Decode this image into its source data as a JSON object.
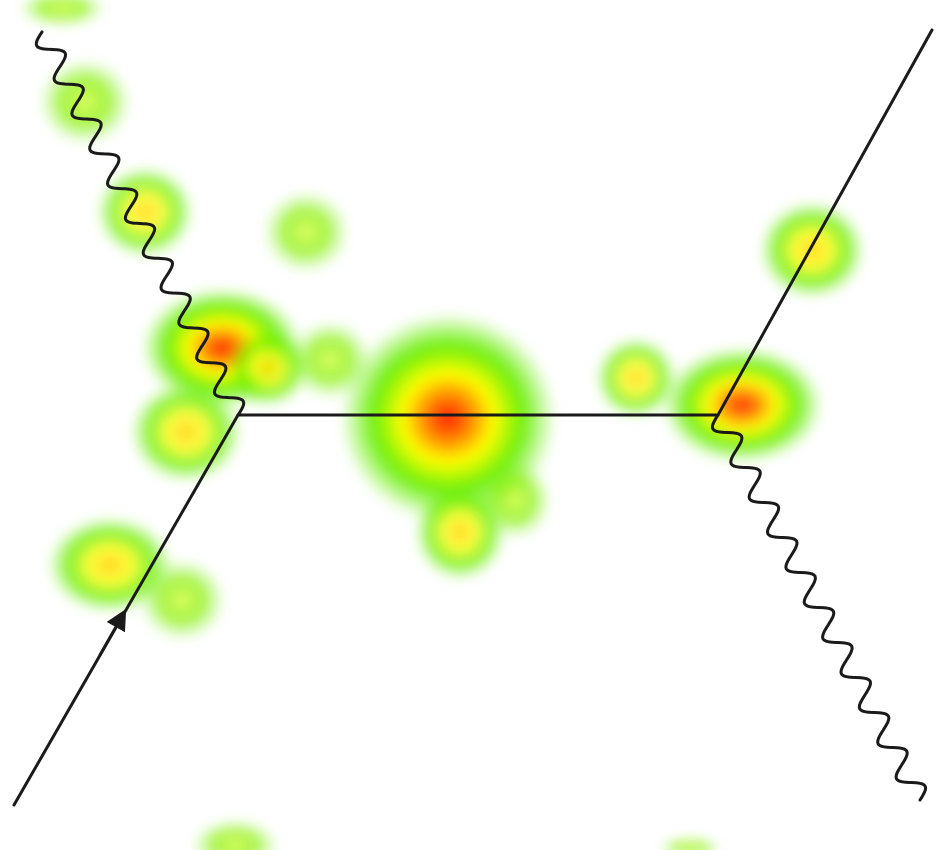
{
  "figure": {
    "kind": "feynman-diagram-with-attention-heatmap",
    "colors": {
      "background": "#ffffff",
      "line": "#1a1a1a",
      "heat_low": "#7cf000",
      "heat_mid": "#ffff00",
      "heat_high": "#ff2200"
    },
    "lines": [
      {
        "name": "incoming-fermion-line",
        "style": "straight",
        "arrow": true
      },
      {
        "name": "propagator-line",
        "style": "straight",
        "arrow": false
      },
      {
        "name": "outgoing-fermion-line",
        "style": "straight",
        "arrow": false
      },
      {
        "name": "incoming-photon-line",
        "style": "wavy",
        "arrow": false
      },
      {
        "name": "outgoing-photon-line",
        "style": "wavy",
        "arrow": false
      }
    ],
    "heat_levels": {
      "spot-1": 0.2,
      "spot-2": 0.3,
      "spot-3": 0.3,
      "spot-4": 0.2,
      "spot-5": 0.95,
      "spot-6": 0.35,
      "spot-7": 0.25,
      "spot-8": 0.4,
      "spot-9": 0.5,
      "spot-10": 0.25,
      "spot-11": 1.0,
      "spot-12": 0.45,
      "spot-13": 0.3,
      "spot-14": 0.3,
      "spot-15": 0.5,
      "spot-16": 0.85,
      "spot-17": 0.2,
      "spot-18": 0.15
    }
  }
}
